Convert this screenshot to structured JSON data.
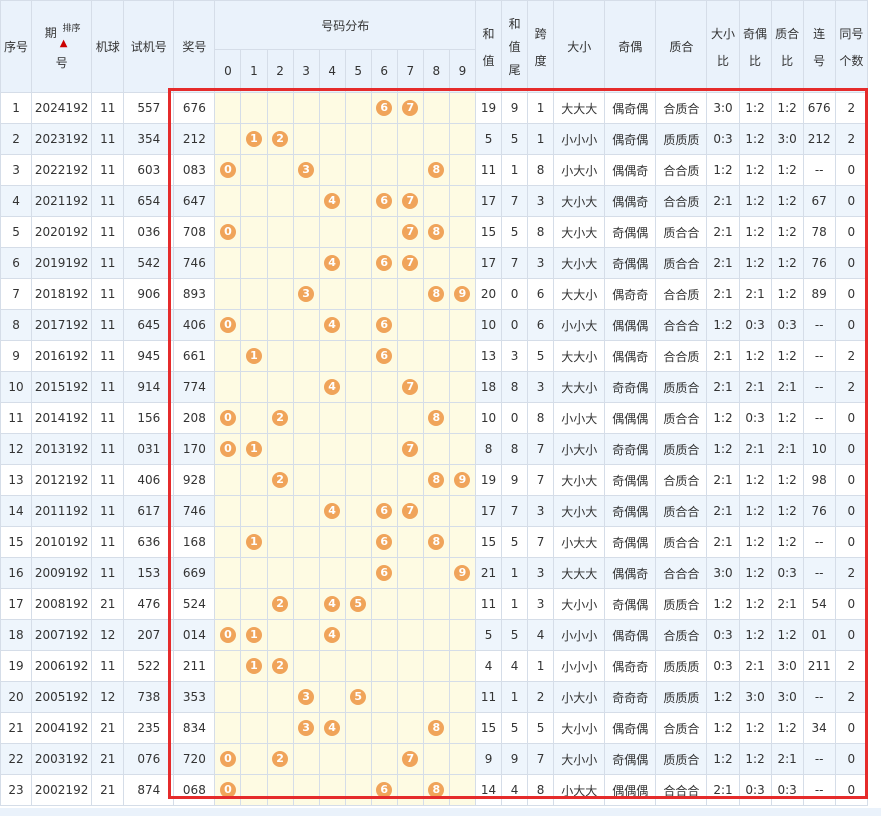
{
  "headers": {
    "seq": "序号",
    "period_a": "期",
    "period_b": "号",
    "sort_label": "排序",
    "machine": "机球",
    "test": "试机号",
    "prize": "奖号",
    "dist": "号码分布",
    "digits": [
      "0",
      "1",
      "2",
      "3",
      "4",
      "5",
      "6",
      "7",
      "8",
      "9"
    ],
    "sum_a": "和",
    "sum_b": "值",
    "tail_a": "和",
    "tail_b": "值",
    "tail_c": "尾",
    "span_a": "跨",
    "span_b": "度",
    "size": "大小",
    "parity": "奇偶",
    "prime": "质合",
    "size_ratio_a": "大小",
    "size_ratio_b": "比",
    "parity_ratio_a": "奇偶",
    "parity_ratio_b": "比",
    "prime_ratio_a": "质合",
    "prime_ratio_b": "比",
    "consec_a": "连",
    "consec_b": "号",
    "same_a": "同号",
    "same_b": "个数"
  },
  "rows": [
    {
      "seq": "1",
      "period": "2024192",
      "machine": "11",
      "test": "557",
      "prize": "676",
      "sum": "19",
      "tail": "9",
      "span": "1",
      "size": "大大大",
      "parity": "偶奇偶",
      "prime": "合质合",
      "sr": "3:0",
      "pr": "1:2",
      "qr": "1:2",
      "consec": "676",
      "same": "2"
    },
    {
      "seq": "2",
      "period": "2023192",
      "machine": "11",
      "test": "354",
      "prize": "212",
      "sum": "5",
      "tail": "5",
      "span": "1",
      "size": "小小小",
      "parity": "偶奇偶",
      "prime": "质质质",
      "sr": "0:3",
      "pr": "1:2",
      "qr": "3:0",
      "consec": "212",
      "same": "2"
    },
    {
      "seq": "3",
      "period": "2022192",
      "machine": "11",
      "test": "603",
      "prize": "083",
      "sum": "11",
      "tail": "1",
      "span": "8",
      "size": "小大小",
      "parity": "偶偶奇",
      "prime": "合合质",
      "sr": "1:2",
      "pr": "1:2",
      "qr": "1:2",
      "consec": "--",
      "same": "0"
    },
    {
      "seq": "4",
      "period": "2021192",
      "machine": "11",
      "test": "654",
      "prize": "647",
      "sum": "17",
      "tail": "7",
      "span": "3",
      "size": "大小大",
      "parity": "偶偶奇",
      "prime": "合合质",
      "sr": "2:1",
      "pr": "1:2",
      "qr": "1:2",
      "consec": "67",
      "same": "0"
    },
    {
      "seq": "5",
      "period": "2020192",
      "machine": "11",
      "test": "036",
      "prize": "708",
      "sum": "15",
      "tail": "5",
      "span": "8",
      "size": "大小大",
      "parity": "奇偶偶",
      "prime": "质合合",
      "sr": "2:1",
      "pr": "1:2",
      "qr": "1:2",
      "consec": "78",
      "same": "0"
    },
    {
      "seq": "6",
      "period": "2019192",
      "machine": "11",
      "test": "542",
      "prize": "746",
      "sum": "17",
      "tail": "7",
      "span": "3",
      "size": "大小大",
      "parity": "奇偶偶",
      "prime": "质合合",
      "sr": "2:1",
      "pr": "1:2",
      "qr": "1:2",
      "consec": "76",
      "same": "0"
    },
    {
      "seq": "7",
      "period": "2018192",
      "machine": "11",
      "test": "906",
      "prize": "893",
      "sum": "20",
      "tail": "0",
      "span": "6",
      "size": "大大小",
      "parity": "偶奇奇",
      "prime": "合合质",
      "sr": "2:1",
      "pr": "2:1",
      "qr": "1:2",
      "consec": "89",
      "same": "0"
    },
    {
      "seq": "8",
      "period": "2017192",
      "machine": "11",
      "test": "645",
      "prize": "406",
      "sum": "10",
      "tail": "0",
      "span": "6",
      "size": "小小大",
      "parity": "偶偶偶",
      "prime": "合合合",
      "sr": "1:2",
      "pr": "0:3",
      "qr": "0:3",
      "consec": "--",
      "same": "0"
    },
    {
      "seq": "9",
      "period": "2016192",
      "machine": "11",
      "test": "945",
      "prize": "661",
      "sum": "13",
      "tail": "3",
      "span": "5",
      "size": "大大小",
      "parity": "偶偶奇",
      "prime": "合合质",
      "sr": "2:1",
      "pr": "1:2",
      "qr": "1:2",
      "consec": "--",
      "same": "2"
    },
    {
      "seq": "10",
      "period": "2015192",
      "machine": "11",
      "test": "914",
      "prize": "774",
      "sum": "18",
      "tail": "8",
      "span": "3",
      "size": "大大小",
      "parity": "奇奇偶",
      "prime": "质质合",
      "sr": "2:1",
      "pr": "2:1",
      "qr": "2:1",
      "consec": "--",
      "same": "2"
    },
    {
      "seq": "11",
      "period": "2014192",
      "machine": "11",
      "test": "156",
      "prize": "208",
      "sum": "10",
      "tail": "0",
      "span": "8",
      "size": "小小大",
      "parity": "偶偶偶",
      "prime": "质合合",
      "sr": "1:2",
      "pr": "0:3",
      "qr": "1:2",
      "consec": "--",
      "same": "0"
    },
    {
      "seq": "12",
      "period": "2013192",
      "machine": "11",
      "test": "031",
      "prize": "170",
      "sum": "8",
      "tail": "8",
      "span": "7",
      "size": "小大小",
      "parity": "奇奇偶",
      "prime": "质质合",
      "sr": "1:2",
      "pr": "2:1",
      "qr": "2:1",
      "consec": "10",
      "same": "0"
    },
    {
      "seq": "13",
      "period": "2012192",
      "machine": "11",
      "test": "406",
      "prize": "928",
      "sum": "19",
      "tail": "9",
      "span": "7",
      "size": "大小大",
      "parity": "奇偶偶",
      "prime": "合质合",
      "sr": "2:1",
      "pr": "1:2",
      "qr": "1:2",
      "consec": "98",
      "same": "0"
    },
    {
      "seq": "14",
      "period": "2011192",
      "machine": "11",
      "test": "617",
      "prize": "746",
      "sum": "17",
      "tail": "7",
      "span": "3",
      "size": "大小大",
      "parity": "奇偶偶",
      "prime": "质合合",
      "sr": "2:1",
      "pr": "1:2",
      "qr": "1:2",
      "consec": "76",
      "same": "0"
    },
    {
      "seq": "15",
      "period": "2010192",
      "machine": "11",
      "test": "636",
      "prize": "168",
      "sum": "15",
      "tail": "5",
      "span": "7",
      "size": "小大大",
      "parity": "奇偶偶",
      "prime": "质合合",
      "sr": "2:1",
      "pr": "1:2",
      "qr": "1:2",
      "consec": "--",
      "same": "0"
    },
    {
      "seq": "16",
      "period": "2009192",
      "machine": "11",
      "test": "153",
      "prize": "669",
      "sum": "21",
      "tail": "1",
      "span": "3",
      "size": "大大大",
      "parity": "偶偶奇",
      "prime": "合合合",
      "sr": "3:0",
      "pr": "1:2",
      "qr": "0:3",
      "consec": "--",
      "same": "2"
    },
    {
      "seq": "17",
      "period": "2008192",
      "machine": "21",
      "test": "476",
      "prize": "524",
      "sum": "11",
      "tail": "1",
      "span": "3",
      "size": "大小小",
      "parity": "奇偶偶",
      "prime": "质质合",
      "sr": "1:2",
      "pr": "1:2",
      "qr": "2:1",
      "consec": "54",
      "same": "0"
    },
    {
      "seq": "18",
      "period": "2007192",
      "machine": "12",
      "test": "207",
      "prize": "014",
      "sum": "5",
      "tail": "5",
      "span": "4",
      "size": "小小小",
      "parity": "偶奇偶",
      "prime": "合质合",
      "sr": "0:3",
      "pr": "1:2",
      "qr": "1:2",
      "consec": "01",
      "same": "0"
    },
    {
      "seq": "19",
      "period": "2006192",
      "machine": "11",
      "test": "522",
      "prize": "211",
      "sum": "4",
      "tail": "4",
      "span": "1",
      "size": "小小小",
      "parity": "偶奇奇",
      "prime": "质质质",
      "sr": "0:3",
      "pr": "2:1",
      "qr": "3:0",
      "consec": "211",
      "same": "2"
    },
    {
      "seq": "20",
      "period": "2005192",
      "machine": "12",
      "test": "738",
      "prize": "353",
      "sum": "11",
      "tail": "1",
      "span": "2",
      "size": "小大小",
      "parity": "奇奇奇",
      "prime": "质质质",
      "sr": "1:2",
      "pr": "3:0",
      "qr": "3:0",
      "consec": "--",
      "same": "2"
    },
    {
      "seq": "21",
      "period": "2004192",
      "machine": "21",
      "test": "235",
      "prize": "834",
      "sum": "15",
      "tail": "5",
      "span": "5",
      "size": "大小小",
      "parity": "偶奇偶",
      "prime": "合质合",
      "sr": "1:2",
      "pr": "1:2",
      "qr": "1:2",
      "consec": "34",
      "same": "0"
    },
    {
      "seq": "22",
      "period": "2003192",
      "machine": "21",
      "test": "076",
      "prize": "720",
      "sum": "9",
      "tail": "9",
      "span": "7",
      "size": "大小小",
      "parity": "奇偶偶",
      "prime": "质质合",
      "sr": "1:2",
      "pr": "1:2",
      "qr": "2:1",
      "consec": "--",
      "same": "0"
    },
    {
      "seq": "23",
      "period": "2002192",
      "machine": "21",
      "test": "874",
      "prize": "068",
      "sum": "14",
      "tail": "4",
      "span": "8",
      "size": "小大大",
      "parity": "偶偶偶",
      "prime": "合合合",
      "sr": "2:1",
      "pr": "0:3",
      "qr": "0:3",
      "consec": "--",
      "same": "0"
    }
  ]
}
